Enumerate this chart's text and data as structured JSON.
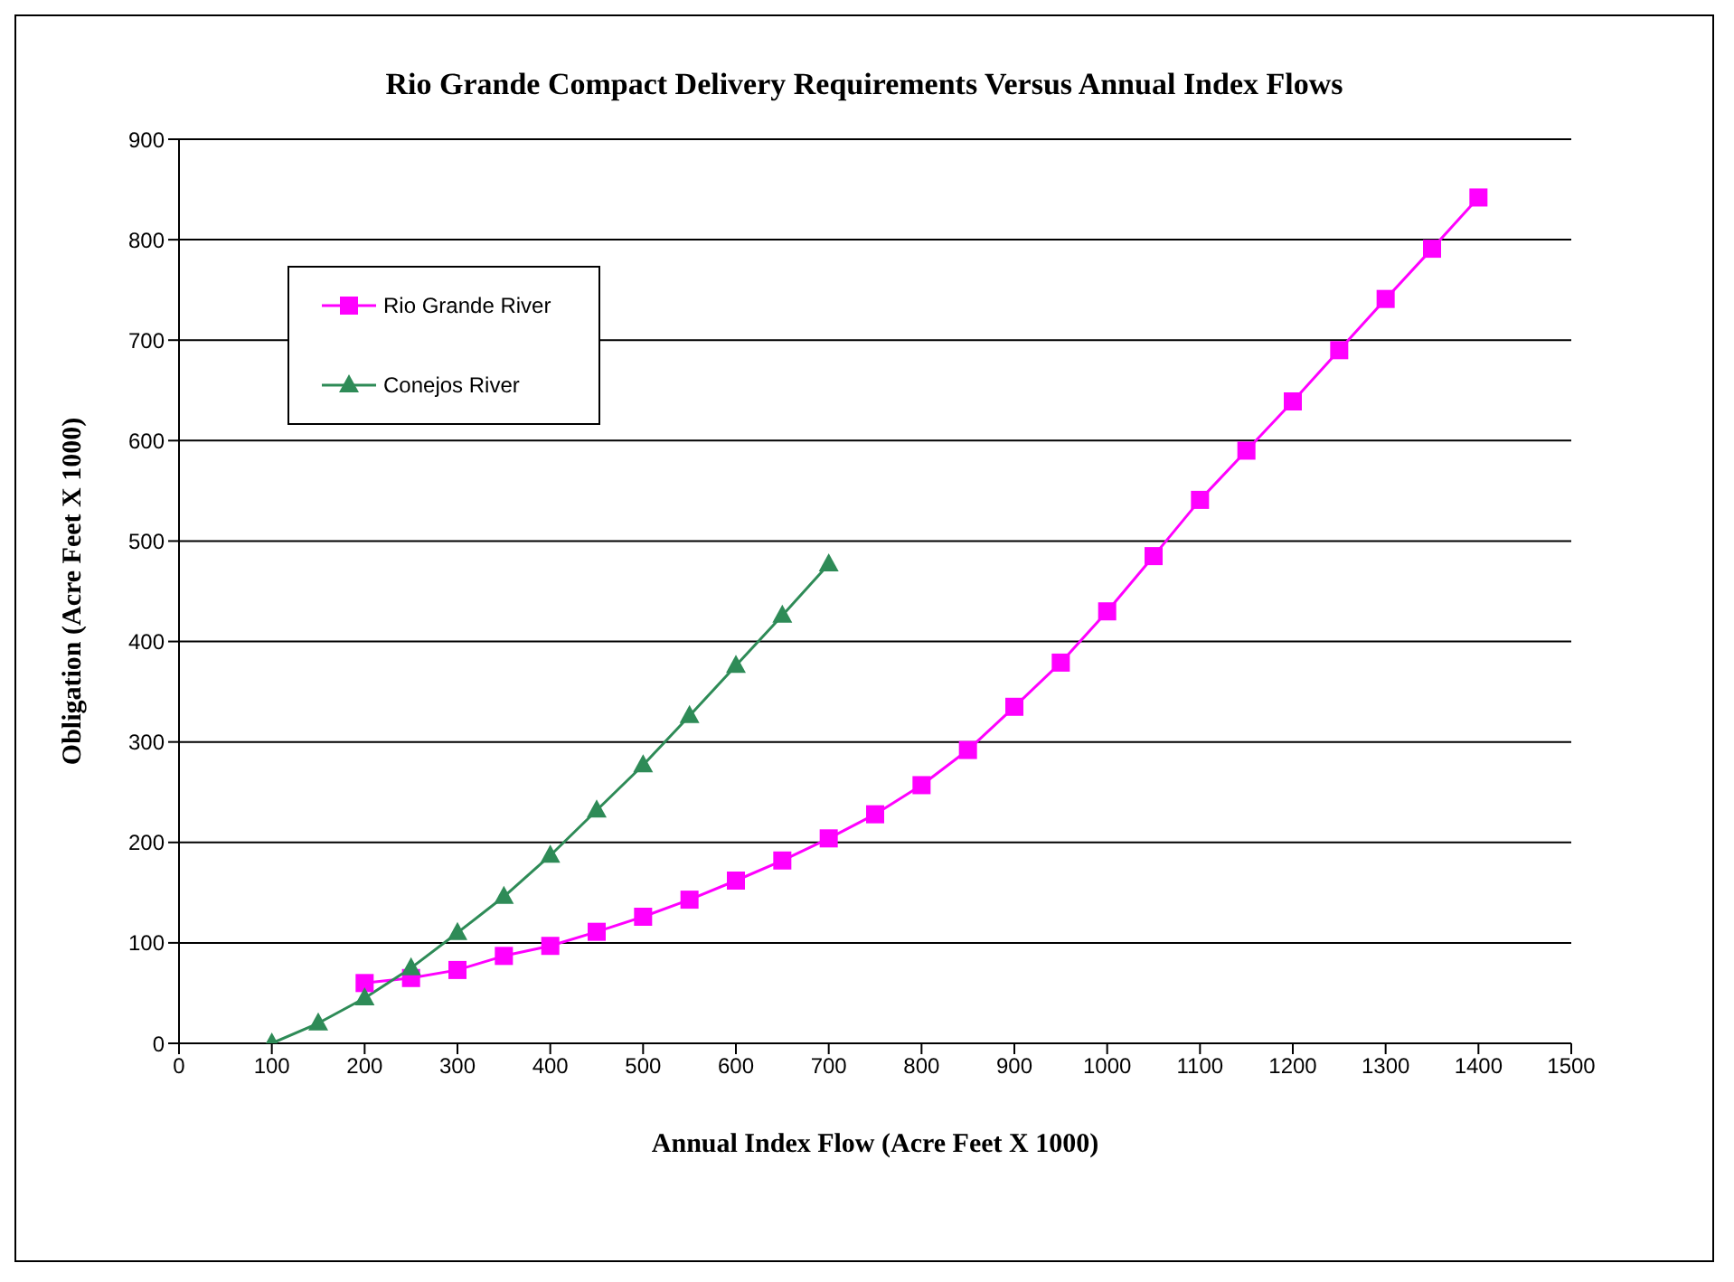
{
  "chart_data": {
    "type": "line",
    "title": "Rio Grande Compact Delivery Requirements Versus Annual Index Flows",
    "xlabel": "Annual  Index Flow  (Acre Feet X 1000)",
    "ylabel": "Obligation  (Acre Feet X 1000)",
    "series": [
      {
        "name": "Rio Grande River",
        "color": "#ff00ff",
        "marker": "square",
        "x": [
          200,
          250,
          300,
          350,
          400,
          450,
          500,
          550,
          600,
          650,
          700,
          750,
          800,
          850,
          900,
          950,
          1000,
          1050,
          1100,
          1150,
          1200,
          1250,
          1300,
          1350,
          1400
        ],
        "values": [
          60,
          65,
          73,
          87,
          97,
          111,
          126,
          143,
          162,
          182,
          204,
          228,
          257,
          292,
          335,
          379,
          430,
          485,
          541,
          590,
          639,
          690,
          741,
          791,
          842
        ]
      },
      {
        "name": "Conejos River",
        "color": "#2e8b57",
        "marker": "triangle",
        "x": [
          100,
          150,
          200,
          250,
          300,
          350,
          400,
          450,
          500,
          550,
          600,
          650,
          700
        ],
        "values": [
          0,
          20,
          45,
          75,
          110,
          146,
          187,
          232,
          277,
          326,
          376,
          426,
          477
        ]
      }
    ],
    "xlim": [
      0,
      1500
    ],
    "xticks": [
      0,
      100,
      200,
      300,
      400,
      500,
      600,
      700,
      800,
      900,
      1000,
      1100,
      1200,
      1300,
      1400,
      1500
    ],
    "ylim": [
      0,
      900
    ],
    "yticks": [
      0,
      100,
      200,
      300,
      400,
      500,
      600,
      700,
      800,
      900
    ],
    "grid": "y",
    "legend": "top left"
  }
}
